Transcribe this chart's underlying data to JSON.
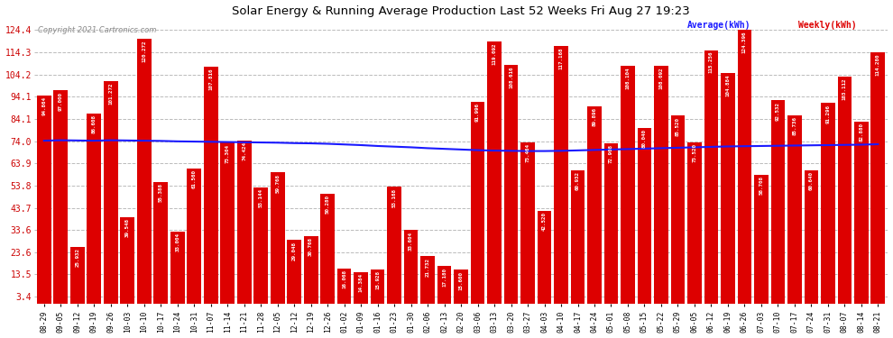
{
  "title": "Solar Energy & Running Average Production Last 52 Weeks Fri Aug 27 19:23",
  "copyright": "Copyright 2021 Cartronics.com",
  "legend_avg": "Average(kWh)",
  "legend_weekly": "Weekly(kWh)",
  "bar_color": "#dd0000",
  "avg_line_color": "#1a1aff",
  "background_color": "#ffffff",
  "grid_color": "#bbbbbb",
  "ylabel_color": "#cc0000",
  "xlabel_color": "#000000",
  "labels": [
    "08-29",
    "09-05",
    "09-12",
    "09-19",
    "09-26",
    "10-03",
    "10-10",
    "10-17",
    "10-24",
    "10-31",
    "11-07",
    "11-14",
    "11-21",
    "11-28",
    "12-05",
    "12-12",
    "12-19",
    "12-26",
    "01-02",
    "01-09",
    "01-16",
    "01-23",
    "01-30",
    "02-06",
    "02-13",
    "02-20",
    "03-06",
    "03-13",
    "03-20",
    "03-27",
    "04-03",
    "04-10",
    "04-17",
    "04-24",
    "05-01",
    "05-08",
    "05-15",
    "05-22",
    "05-29",
    "06-05",
    "06-12",
    "06-19",
    "06-26",
    "07-03",
    "07-10",
    "07-17",
    "07-24",
    "07-31",
    "08-07",
    "08-14",
    "08-21"
  ],
  "values": [
    94.864,
    97.0,
    25.932,
    86.608,
    101.272,
    39.548,
    120.272,
    55.388,
    33.004,
    61.56,
    107.816,
    73.304,
    74.424,
    53.144,
    59.768,
    29.048,
    30.768,
    50.28,
    16.068,
    14.384,
    15.928,
    53.168,
    33.604,
    21.732,
    17.18,
    15.6,
    91.996,
    119.092,
    108.616,
    73.464,
    42.52,
    117.168,
    60.932,
    89.896,
    72.908,
    108.104,
    80.04,
    108.092,
    85.52,
    73.52,
    115.256,
    104.884,
    124.396,
    58.708,
    92.532,
    85.736,
    60.64,
    91.296,
    103.112,
    82.88,
    114.28
  ],
  "avg_values": [
    74.2,
    74.4,
    74.3,
    74.2,
    74.4,
    74.3,
    74.2,
    74.1,
    73.9,
    73.8,
    73.7,
    73.6,
    73.5,
    73.4,
    73.3,
    73.1,
    73.0,
    72.8,
    72.5,
    72.2,
    71.8,
    71.5,
    71.2,
    70.8,
    70.5,
    70.2,
    69.9,
    69.7,
    69.6,
    69.5,
    69.5,
    69.6,
    69.8,
    70.0,
    70.2,
    70.4,
    70.6,
    70.8,
    71.0,
    71.2,
    71.4,
    71.6,
    71.7,
    71.8,
    71.9,
    72.0,
    72.1,
    72.2,
    72.3,
    72.4,
    72.6
  ],
  "ylim": [
    0,
    130
  ],
  "yticks": [
    3.4,
    13.5,
    23.6,
    33.6,
    43.7,
    53.8,
    63.9,
    74.0,
    84.1,
    94.1,
    104.2,
    114.3,
    124.4
  ]
}
